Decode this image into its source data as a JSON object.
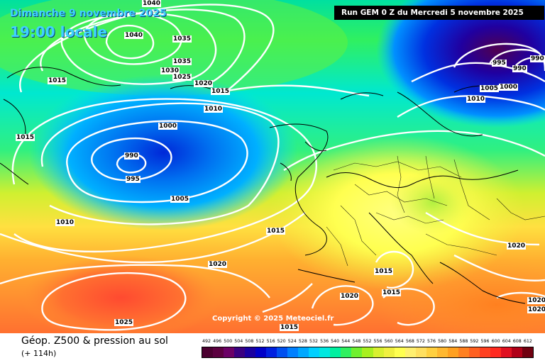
{
  "header": {
    "date_title": "Dimanche 9 novembre 2025",
    "time_title": "19:00 locale",
    "run_info": "Run GEM 0 Z du Mercredi 5 novembre 2025"
  },
  "map": {
    "copyright": "Copyright © 2025 Meteociel.fr",
    "isobar_labels": [
      "1040",
      "1040",
      "1035",
      "1035",
      "1030",
      "1025",
      "1015",
      "1015",
      "1020",
      "1015",
      "1010",
      "1000",
      "990",
      "995",
      "1005",
      "1010",
      "1015",
      "1020",
      "1025",
      "1020",
      "1015",
      "1015",
      "1015",
      "1020",
      "1020",
      "995",
      "990",
      "990",
      "1000",
      "1005",
      "1010",
      "1020"
    ]
  },
  "footer": {
    "product_title": "Géop. Z500 & pression au sol",
    "forecast_step": "(+ 114h)"
  },
  "scale": {
    "values": [
      "492",
      "496",
      "500",
      "504",
      "508",
      "512",
      "516",
      "520",
      "524",
      "528",
      "532",
      "536",
      "540",
      "544",
      "548",
      "552",
      "556",
      "560",
      "564",
      "568",
      "572",
      "576",
      "580",
      "584",
      "588",
      "592",
      "596",
      "600",
      "604",
      "608",
      "612"
    ],
    "colors": [
      "#4b0030",
      "#5c0040",
      "#6b0066",
      "#3a0080",
      "#1a00a0",
      "#0000c8",
      "#0020e0",
      "#0050f0",
      "#0080ff",
      "#00a8ff",
      "#00d0ff",
      "#00e8e0",
      "#00f0a0",
      "#30f060",
      "#70f030",
      "#a8f020",
      "#d8f030",
      "#f0f040",
      "#ffff50",
      "#fff070",
      "#ffe060",
      "#ffd040",
      "#ffb830",
      "#ffa020",
      "#ff8020",
      "#ff6020",
      "#ff4020",
      "#ff2a20",
      "#e01020",
      "#b00018",
      "#700010"
    ],
    "highlight_colors": {
      "low_center": "#1030d0",
      "high_cell": "#ff5a30",
      "deep_low": "#3a0060"
    }
  }
}
